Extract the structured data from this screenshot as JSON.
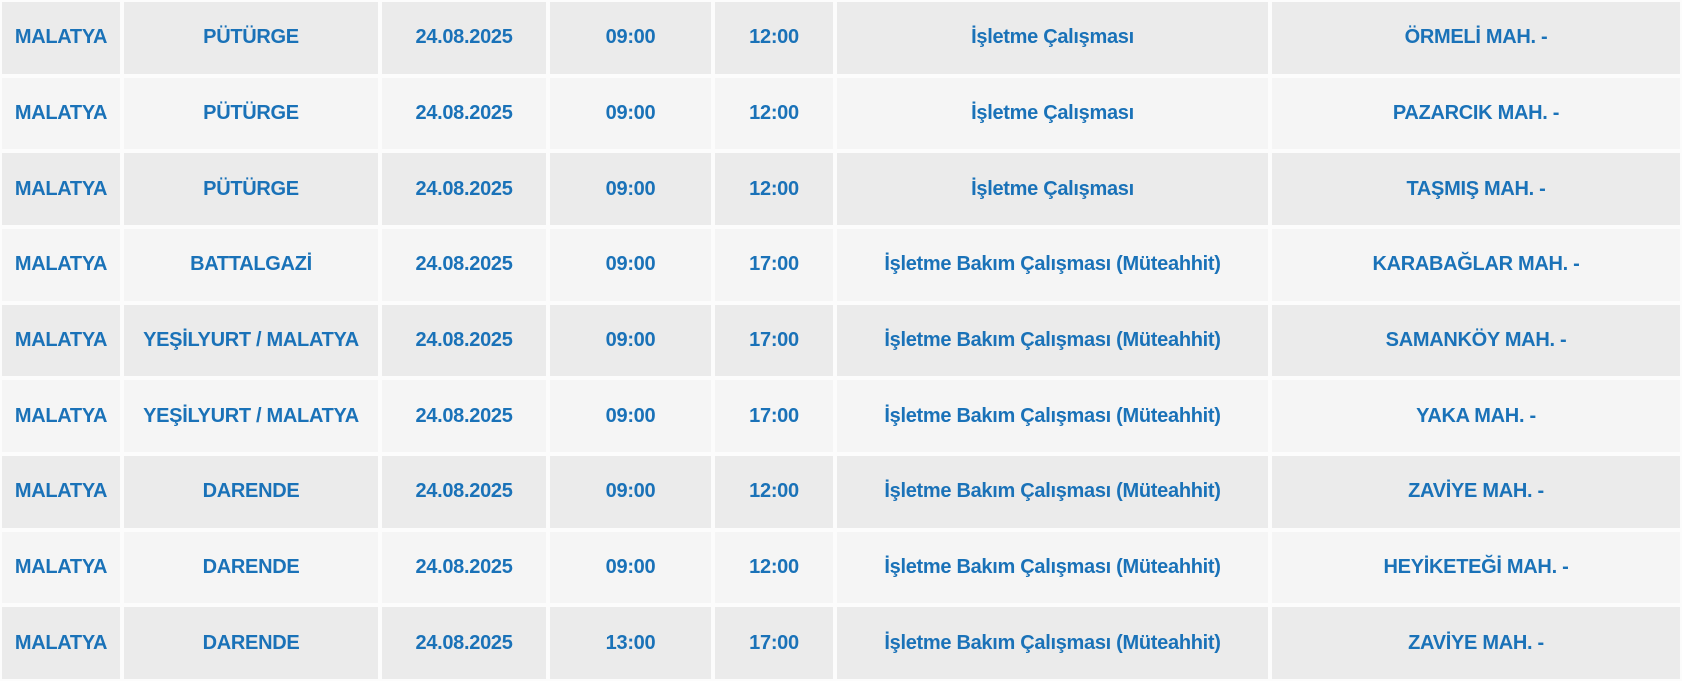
{
  "colors": {
    "text_blue": "#1a72b8",
    "row_odd_bg": "#ebebeb",
    "row_even_bg": "#f5f5f5",
    "cell_border": "#fcfcfc",
    "page_bg": "#ffffff"
  },
  "table": {
    "columns": [
      "province",
      "district",
      "date",
      "start_time",
      "end_time",
      "work_type",
      "neighborhood"
    ],
    "rows": [
      {
        "province": "MALATYA",
        "district": "PÜTÜRGE",
        "date": "24.08.2025",
        "start_time": "09:00",
        "end_time": "12:00",
        "work_type": "İşletme Çalışması",
        "neighborhood": "ÖRMELİ MAH. -"
      },
      {
        "province": "MALATYA",
        "district": "PÜTÜRGE",
        "date": "24.08.2025",
        "start_time": "09:00",
        "end_time": "12:00",
        "work_type": "İşletme Çalışması",
        "neighborhood": "PAZARCIK MAH. -"
      },
      {
        "province": "MALATYA",
        "district": "PÜTÜRGE",
        "date": "24.08.2025",
        "start_time": "09:00",
        "end_time": "12:00",
        "work_type": "İşletme Çalışması",
        "neighborhood": "TAŞMIŞ MAH. -"
      },
      {
        "province": "MALATYA",
        "district": "BATTALGAZİ",
        "date": "24.08.2025",
        "start_time": "09:00",
        "end_time": "17:00",
        "work_type": "İşletme Bakım Çalışması (Müteahhit)",
        "neighborhood": "KARABAĞLAR MAH. -"
      },
      {
        "province": "MALATYA",
        "district": "YEŞİLYURT / MALATYA",
        "date": "24.08.2025",
        "start_time": "09:00",
        "end_time": "17:00",
        "work_type": "İşletme Bakım Çalışması (Müteahhit)",
        "neighborhood": "SAMANKÖY MAH. -"
      },
      {
        "province": "MALATYA",
        "district": "YEŞİLYURT / MALATYA",
        "date": "24.08.2025",
        "start_time": "09:00",
        "end_time": "17:00",
        "work_type": "İşletme Bakım Çalışması (Müteahhit)",
        "neighborhood": "YAKA MAH. -"
      },
      {
        "province": "MALATYA",
        "district": "DARENDE",
        "date": "24.08.2025",
        "start_time": "09:00",
        "end_time": "12:00",
        "work_type": "İşletme Bakım Çalışması (Müteahhit)",
        "neighborhood": "ZAVİYE MAH. -"
      },
      {
        "province": "MALATYA",
        "district": "DARENDE",
        "date": "24.08.2025",
        "start_time": "09:00",
        "end_time": "12:00",
        "work_type": "İşletme Bakım Çalışması (Müteahhit)",
        "neighborhood": "HEYİKETEĞİ MAH. -"
      },
      {
        "province": "MALATYA",
        "district": "DARENDE",
        "date": "24.08.2025",
        "start_time": "13:00",
        "end_time": "17:00",
        "work_type": "İşletme Bakım Çalışması (Müteahhit)",
        "neighborhood": "ZAVİYE MAH. -"
      }
    ]
  }
}
